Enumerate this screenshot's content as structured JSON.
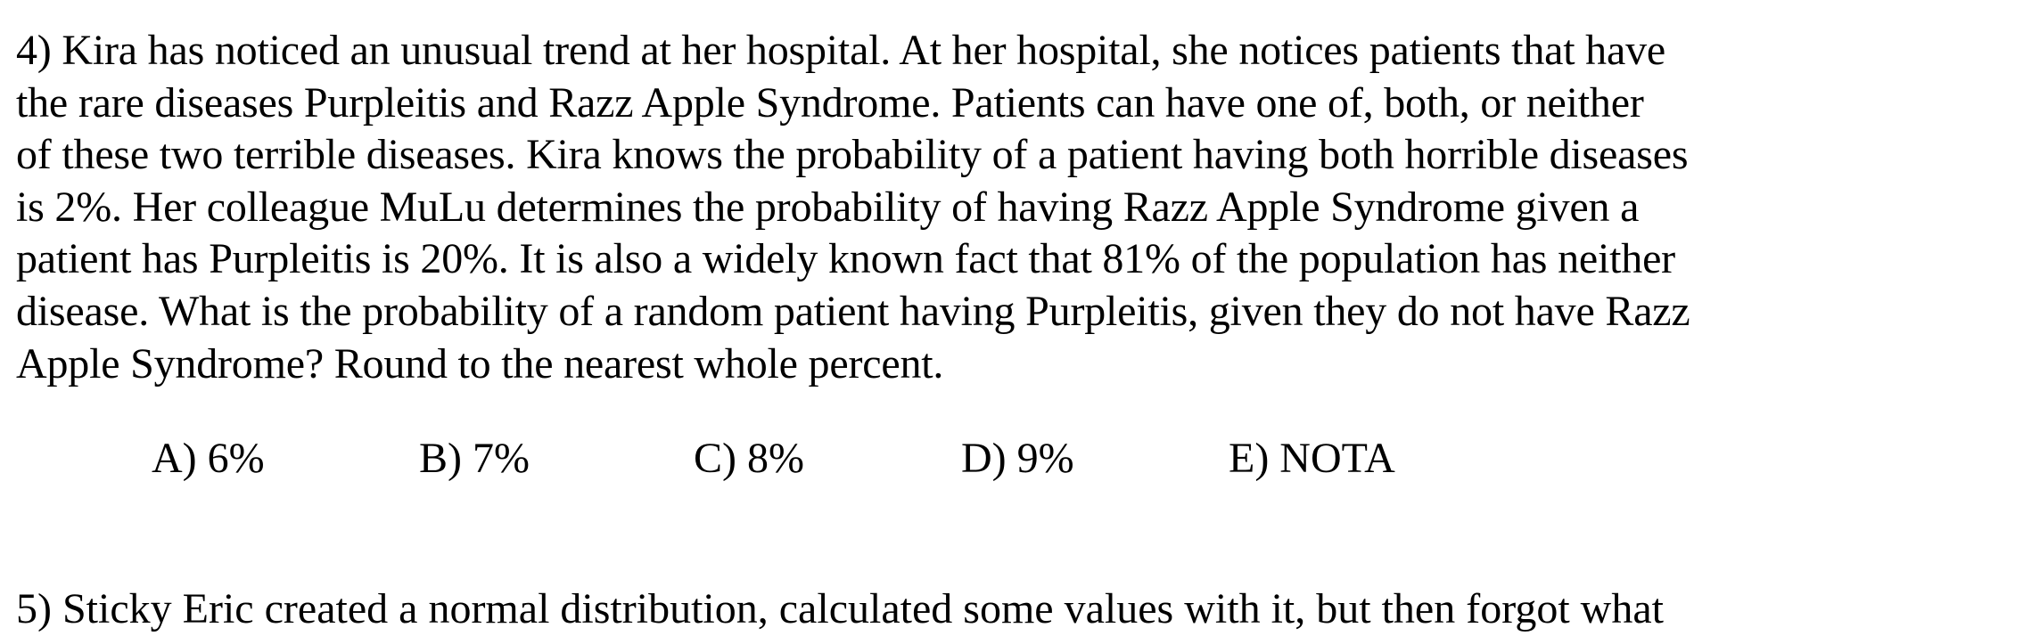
{
  "question": {
    "lines": [
      "4) Kira has noticed an unusual trend at her hospital. At her hospital, she notices patients that have",
      "the rare diseases Purpleitis and Razz Apple Syndrome. Patients can have one of, both, or neither",
      "of these two terrible diseases. Kira knows the probability of a patient having both horrible diseases",
      "is 2%. Her colleague MuLu determines the probability of having Razz Apple Syndrome given a",
      "patient has Purpleitis is 20%. It is also a widely known fact that 81% of the population has neither",
      "disease. What is the probability of a random patient having Purpleitis, given they do not have Razz",
      "Apple Syndrome? Round to the nearest whole percent."
    ]
  },
  "choices": [
    {
      "label": "A) 6%"
    },
    {
      "label": "B) 7%"
    },
    {
      "label": "C) 8%"
    },
    {
      "label": "D) 9%"
    },
    {
      "label": "E) NOTA"
    }
  ],
  "next_question": {
    "text": "5) Sticky Eric created a normal distribution, calculated some values with it, but then forgot what"
  }
}
